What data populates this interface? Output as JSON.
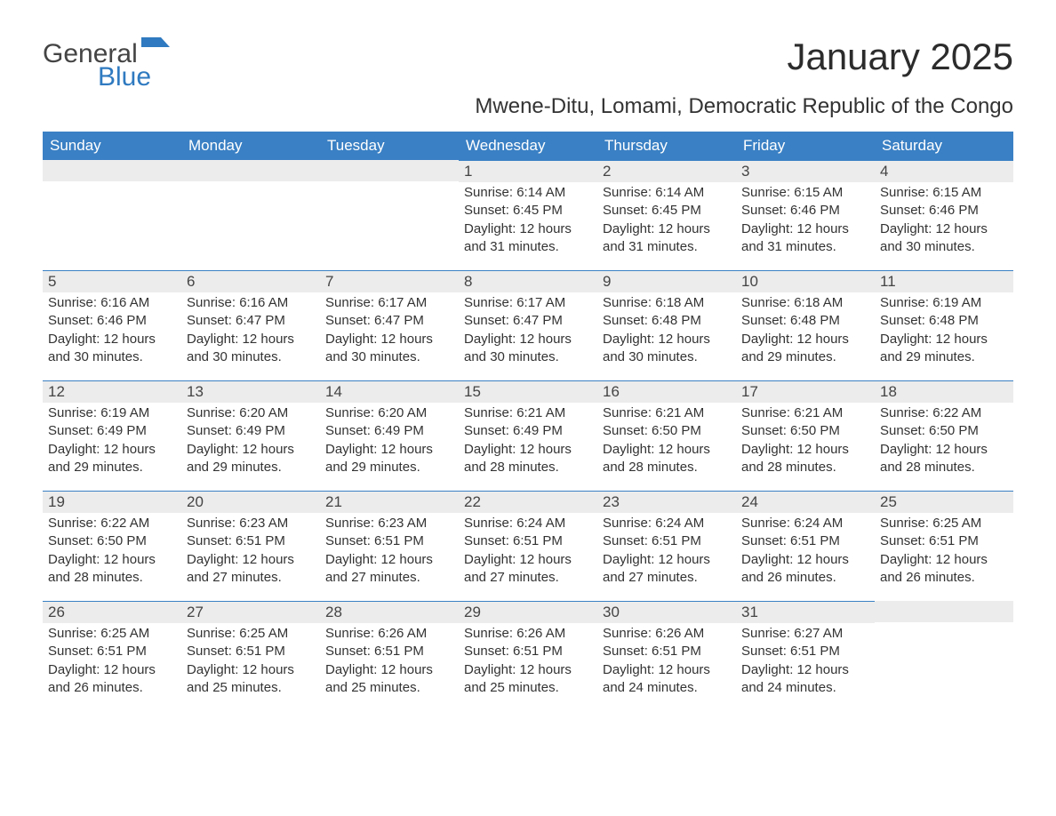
{
  "logo": {
    "line1": "General",
    "line2": "Blue",
    "flag_color": "#2f7ac0"
  },
  "title": "January 2025",
  "subtitle": "Mwene-Ditu, Lomami, Democratic Republic of the Congo",
  "colors": {
    "header_bg": "#3a80c4",
    "header_text": "#ffffff",
    "daynum_bg": "#ececec",
    "daynum_border": "#3a80c4",
    "body_text": "#333333",
    "logo_blue": "#2f7ac0",
    "background": "#ffffff"
  },
  "day_headers": [
    "Sunday",
    "Monday",
    "Tuesday",
    "Wednesday",
    "Thursday",
    "Friday",
    "Saturday"
  ],
  "leading_blanks": 3,
  "days": [
    {
      "n": 1,
      "sunrise": "6:14 AM",
      "sunset": "6:45 PM",
      "daylight": "12 hours and 31 minutes."
    },
    {
      "n": 2,
      "sunrise": "6:14 AM",
      "sunset": "6:45 PM",
      "daylight": "12 hours and 31 minutes."
    },
    {
      "n": 3,
      "sunrise": "6:15 AM",
      "sunset": "6:46 PM",
      "daylight": "12 hours and 31 minutes."
    },
    {
      "n": 4,
      "sunrise": "6:15 AM",
      "sunset": "6:46 PM",
      "daylight": "12 hours and 30 minutes."
    },
    {
      "n": 5,
      "sunrise": "6:16 AM",
      "sunset": "6:46 PM",
      "daylight": "12 hours and 30 minutes."
    },
    {
      "n": 6,
      "sunrise": "6:16 AM",
      "sunset": "6:47 PM",
      "daylight": "12 hours and 30 minutes."
    },
    {
      "n": 7,
      "sunrise": "6:17 AM",
      "sunset": "6:47 PM",
      "daylight": "12 hours and 30 minutes."
    },
    {
      "n": 8,
      "sunrise": "6:17 AM",
      "sunset": "6:47 PM",
      "daylight": "12 hours and 30 minutes."
    },
    {
      "n": 9,
      "sunrise": "6:18 AM",
      "sunset": "6:48 PM",
      "daylight": "12 hours and 30 minutes."
    },
    {
      "n": 10,
      "sunrise": "6:18 AM",
      "sunset": "6:48 PM",
      "daylight": "12 hours and 29 minutes."
    },
    {
      "n": 11,
      "sunrise": "6:19 AM",
      "sunset": "6:48 PM",
      "daylight": "12 hours and 29 minutes."
    },
    {
      "n": 12,
      "sunrise": "6:19 AM",
      "sunset": "6:49 PM",
      "daylight": "12 hours and 29 minutes."
    },
    {
      "n": 13,
      "sunrise": "6:20 AM",
      "sunset": "6:49 PM",
      "daylight": "12 hours and 29 minutes."
    },
    {
      "n": 14,
      "sunrise": "6:20 AM",
      "sunset": "6:49 PM",
      "daylight": "12 hours and 29 minutes."
    },
    {
      "n": 15,
      "sunrise": "6:21 AM",
      "sunset": "6:49 PM",
      "daylight": "12 hours and 28 minutes."
    },
    {
      "n": 16,
      "sunrise": "6:21 AM",
      "sunset": "6:50 PM",
      "daylight": "12 hours and 28 minutes."
    },
    {
      "n": 17,
      "sunrise": "6:21 AM",
      "sunset": "6:50 PM",
      "daylight": "12 hours and 28 minutes."
    },
    {
      "n": 18,
      "sunrise": "6:22 AM",
      "sunset": "6:50 PM",
      "daylight": "12 hours and 28 minutes."
    },
    {
      "n": 19,
      "sunrise": "6:22 AM",
      "sunset": "6:50 PM",
      "daylight": "12 hours and 28 minutes."
    },
    {
      "n": 20,
      "sunrise": "6:23 AM",
      "sunset": "6:51 PM",
      "daylight": "12 hours and 27 minutes."
    },
    {
      "n": 21,
      "sunrise": "6:23 AM",
      "sunset": "6:51 PM",
      "daylight": "12 hours and 27 minutes."
    },
    {
      "n": 22,
      "sunrise": "6:24 AM",
      "sunset": "6:51 PM",
      "daylight": "12 hours and 27 minutes."
    },
    {
      "n": 23,
      "sunrise": "6:24 AM",
      "sunset": "6:51 PM",
      "daylight": "12 hours and 27 minutes."
    },
    {
      "n": 24,
      "sunrise": "6:24 AM",
      "sunset": "6:51 PM",
      "daylight": "12 hours and 26 minutes."
    },
    {
      "n": 25,
      "sunrise": "6:25 AM",
      "sunset": "6:51 PM",
      "daylight": "12 hours and 26 minutes."
    },
    {
      "n": 26,
      "sunrise": "6:25 AM",
      "sunset": "6:51 PM",
      "daylight": "12 hours and 26 minutes."
    },
    {
      "n": 27,
      "sunrise": "6:25 AM",
      "sunset": "6:51 PM",
      "daylight": "12 hours and 25 minutes."
    },
    {
      "n": 28,
      "sunrise": "6:26 AM",
      "sunset": "6:51 PM",
      "daylight": "12 hours and 25 minutes."
    },
    {
      "n": 29,
      "sunrise": "6:26 AM",
      "sunset": "6:51 PM",
      "daylight": "12 hours and 25 minutes."
    },
    {
      "n": 30,
      "sunrise": "6:26 AM",
      "sunset": "6:51 PM",
      "daylight": "12 hours and 24 minutes."
    },
    {
      "n": 31,
      "sunrise": "6:27 AM",
      "sunset": "6:51 PM",
      "daylight": "12 hours and 24 minutes."
    }
  ],
  "labels": {
    "sunrise": "Sunrise: ",
    "sunset": "Sunset: ",
    "daylight": "Daylight: "
  }
}
